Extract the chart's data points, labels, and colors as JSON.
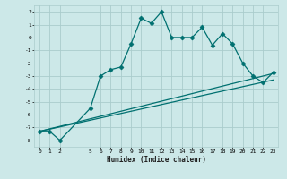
{
  "xlabel": "Humidex (Indice chaleur)",
  "bg_color": "#cce8e8",
  "grid_color": "#aacccc",
  "line_color": "#007070",
  "xlim": [
    -0.5,
    23.5
  ],
  "ylim": [
    -8.5,
    2.5
  ],
  "xticks": [
    0,
    1,
    2,
    5,
    6,
    7,
    8,
    9,
    10,
    11,
    12,
    13,
    14,
    15,
    16,
    17,
    18,
    19,
    20,
    21,
    22,
    23
  ],
  "yticks": [
    2,
    1,
    0,
    -1,
    -2,
    -3,
    -4,
    -5,
    -6,
    -7,
    -8
  ],
  "line1_x": [
    0,
    1,
    2,
    5,
    6,
    7,
    8,
    9,
    10,
    11,
    12,
    13,
    14,
    15,
    16,
    17,
    18,
    19,
    20,
    21,
    22,
    23
  ],
  "line1_y": [
    -7.3,
    -7.3,
    -8.0,
    -5.5,
    -3.0,
    -2.5,
    -2.3,
    -0.5,
    1.5,
    1.1,
    2.0,
    0.0,
    0.0,
    0.0,
    0.8,
    -0.6,
    0.3,
    -0.5,
    -2.0,
    -3.0,
    -3.5,
    -2.7
  ],
  "line2_x": [
    0,
    23
  ],
  "line2_y": [
    -7.3,
    -2.8
  ],
  "line3_x": [
    0,
    23
  ],
  "line3_y": [
    -7.3,
    -3.3
  ],
  "marker": "D",
  "markersize": 2.5,
  "lw": 0.9
}
